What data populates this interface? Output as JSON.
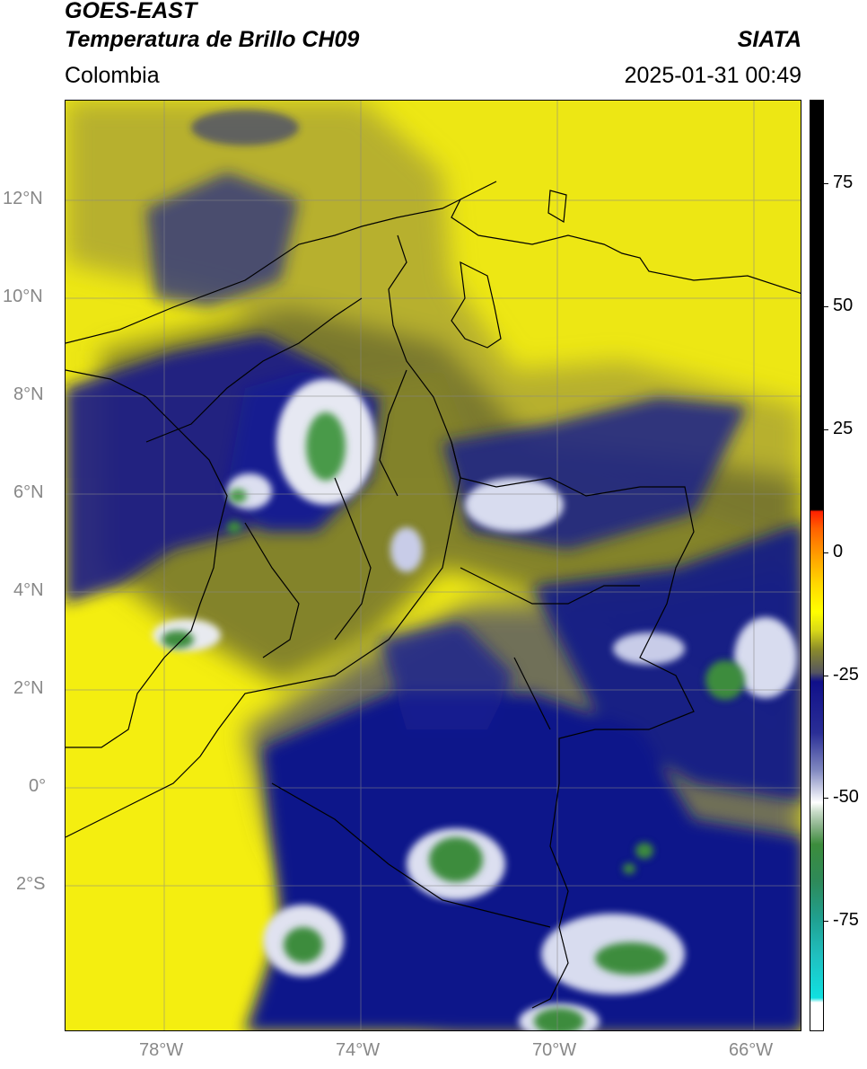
{
  "header": {
    "satellite": "GOES-EAST",
    "product": "Temperatura de Brillo CH09",
    "region": "Colombia",
    "source": "SIATA",
    "datetime": "2025-01-31 00:49"
  },
  "map": {
    "lat_labels": [
      "12°N",
      "10°N",
      "8°N",
      "6°N",
      "4°N",
      "2°N",
      "0°",
      "2°S"
    ],
    "lon_labels": [
      "78°W",
      "74°W",
      "70°W",
      "66°W"
    ]
  },
  "colorbar": {
    "labels": [
      "75",
      "50",
      "25",
      "0",
      "-25",
      "-50",
      "-75"
    ],
    "colors": {
      "black": "#000000",
      "red": "#ff2000",
      "orange": "#ffa000",
      "yellow": "#ffff00",
      "olive": "#8c8c2a",
      "gray": "#555560",
      "navy": "#10108a",
      "white": "#ffffff",
      "green": "#3c8c3c",
      "teal": "#20c0c0"
    }
  }
}
